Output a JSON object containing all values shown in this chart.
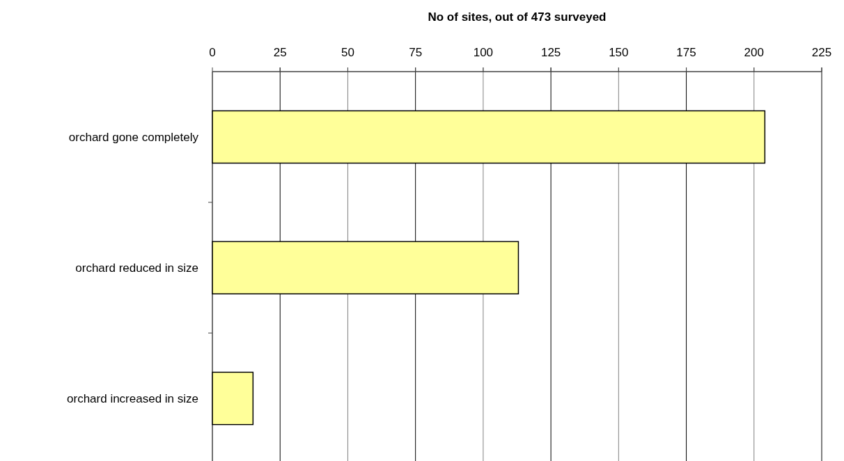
{
  "chart_data": {
    "type": "bar",
    "orientation": "horizontal",
    "xlabel": "No of sites, out of 473 surveyed",
    "categories": [
      "orchard gone completely",
      "orchard reduced in size",
      "orchard increased in size"
    ],
    "values": [
      204,
      113,
      15
    ],
    "color": "#ffff99",
    "xlim": [
      0,
      225
    ],
    "xticks": [
      0,
      25,
      50,
      75,
      100,
      125,
      150,
      175,
      200,
      225
    ],
    "grid": "x"
  }
}
